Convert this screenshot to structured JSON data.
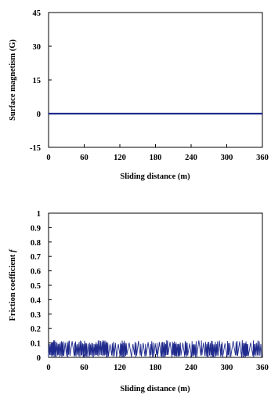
{
  "chart_data": [
    {
      "type": "line",
      "title": "",
      "xlabel": "Sliding distance (m)",
      "ylabel": "Surface magnetism (G)",
      "xlim": [
        0,
        360
      ],
      "ylim": [
        -15,
        45
      ],
      "xticks": [
        "0",
        "60",
        "120",
        "180",
        "240",
        "300",
        "360"
      ],
      "yticks": [
        "45",
        "30",
        "15",
        "0",
        "-15"
      ],
      "grid": false,
      "color": "#1f2a8c",
      "series": [
        {
          "x": [
            0,
            60,
            120,
            180,
            240,
            300,
            360
          ],
          "y": [
            0,
            0,
            0,
            0,
            0,
            0,
            0
          ]
        }
      ]
    },
    {
      "type": "line",
      "title": "",
      "xlabel": "Sliding distance (m)",
      "ylabel_prefix": "Friction coefficient ",
      "ylabel_symbol": "f",
      "xlim": [
        0,
        360
      ],
      "ylim": [
        0,
        1
      ],
      "xticks": [
        "0",
        "60",
        "120",
        "180",
        "240",
        "300",
        "360"
      ],
      "yticks": [
        "1",
        "0.9",
        "0.8",
        "0.7",
        "0.6",
        "0.5",
        "0.4",
        "0.3",
        "0.2",
        "0.1",
        "0"
      ],
      "grid": false,
      "color": "#1f2a8c",
      "series": [
        {
          "description": "oscillating friction between ~0 and ~0.12",
          "y_min": 0.0,
          "y_max": 0.12
        }
      ]
    }
  ]
}
